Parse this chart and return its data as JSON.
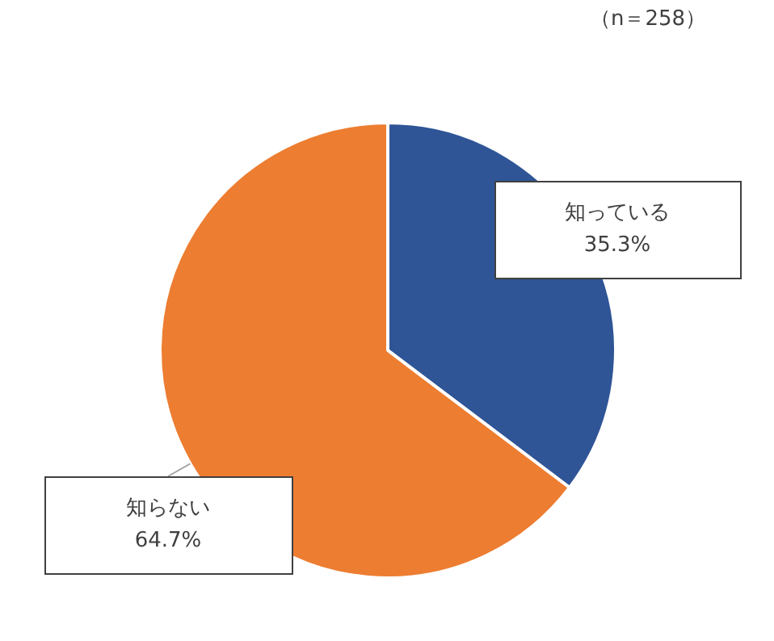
{
  "chart_data": {
    "type": "pie",
    "annotations": [
      "（n＝258）"
    ],
    "categories": [
      "知っている",
      "知らない"
    ],
    "values": [
      35.3,
      64.7
    ],
    "value_labels": [
      "35.3%",
      "64.7%"
    ],
    "colors": [
      "#2f5597",
      "#ed7d31"
    ]
  }
}
